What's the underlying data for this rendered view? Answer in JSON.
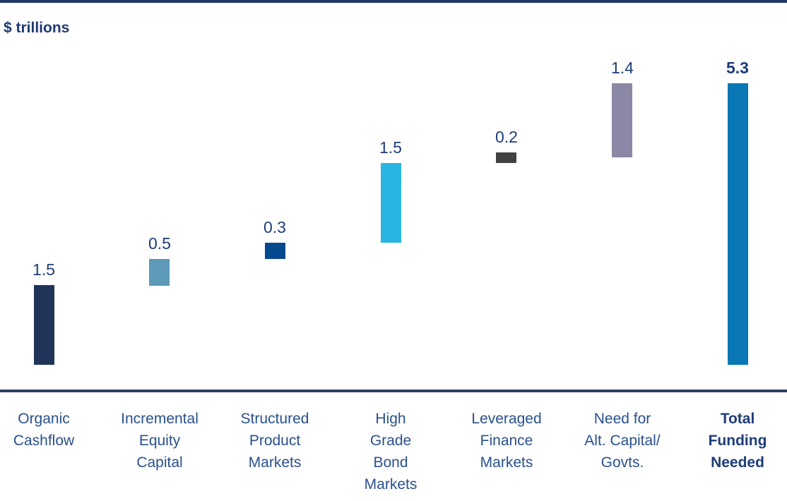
{
  "header": {
    "unit_label": "$ trillions"
  },
  "colors": {
    "top_border": "#20386a",
    "axis_line": "#2f3f63",
    "unit_label": "#1e3a75",
    "value_label": "#1e3c78",
    "category_label": "#29508e",
    "total_category_label": "#1e3c78"
  },
  "chart_data": {
    "type": "bar",
    "subtype": "waterfall",
    "title": "",
    "ylabel": "$ trillions",
    "xlabel": "",
    "grid": false,
    "legend": false,
    "ylim": [
      0,
      5.8
    ],
    "categories": [
      "Organic Cashflow",
      "Incremental Equity Capital",
      "Structured Product Markets",
      "High Grade Bond Markets",
      "Leveraged Finance Markets",
      "Need for Alt. Capital/ Govts.",
      "Total Funding Needed"
    ],
    "category_lines": [
      [
        "Organic",
        "Cashflow"
      ],
      [
        "Incremental",
        "Equity",
        "Capital"
      ],
      [
        "Structured",
        "Product",
        "Markets"
      ],
      [
        "High",
        "Grade",
        "Bond",
        "Markets"
      ],
      [
        "Leveraged",
        "Finance",
        "Markets"
      ],
      [
        "Need for",
        "Alt. Capital/",
        "Govts."
      ],
      [
        "Total",
        "Funding",
        "Needed"
      ]
    ],
    "values": [
      1.5,
      0.5,
      0.3,
      1.5,
      0.2,
      1.4,
      5.3
    ],
    "value_labels": [
      "1.5",
      "0.5",
      "0.3",
      "1.5",
      "0.2",
      "1.4",
      "5.3"
    ],
    "start_values": [
      0,
      1.5,
      2.0,
      2.3,
      3.8,
      3.9,
      0
    ],
    "is_total": [
      false,
      false,
      false,
      false,
      false,
      false,
      true
    ],
    "bar_colors": [
      "#203459",
      "#5c9ab8",
      "#05498f",
      "#29b5e2",
      "#424242",
      "#8b88a5",
      "#0978b5"
    ]
  }
}
